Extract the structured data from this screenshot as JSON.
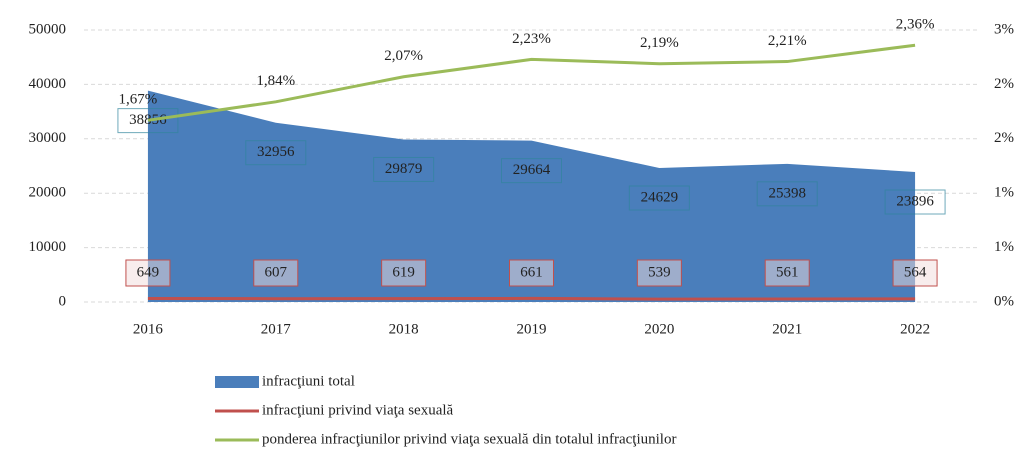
{
  "chart_data": {
    "type": "area",
    "categories": [
      "2016",
      "2017",
      "2018",
      "2019",
      "2020",
      "2021",
      "2022"
    ],
    "series": [
      {
        "name": "infracţiuni total",
        "color": "#4a7ebb",
        "type": "area",
        "values": [
          38856,
          32956,
          29879,
          29664,
          24629,
          25398,
          23896
        ]
      },
      {
        "name": "infracţiuni privind viaţa sexuală",
        "color": "#c0504d",
        "type": "line",
        "values": [
          649,
          607,
          619,
          661,
          539,
          561,
          564
        ]
      },
      {
        "name": "ponderea infracţiunilor privind viaţa sexuală din totalul infracţiunilor",
        "color": "#9bbb59",
        "type": "line",
        "axis": "y2",
        "values": [
          1.67,
          1.84,
          2.07,
          2.23,
          2.19,
          2.21,
          2.36
        ],
        "value_labels": [
          "1,67%",
          "1,84%",
          "2,07%",
          "2,23%",
          "2,19%",
          "2,21%",
          "2,36%"
        ]
      }
    ],
    "ylim": [
      0,
      50000
    ],
    "yticks": [
      0,
      10000,
      20000,
      30000,
      40000,
      50000
    ],
    "y2lim": [
      0,
      2.5
    ],
    "y2ticks": [
      {
        "value": 0,
        "label": "0%"
      },
      {
        "value": 0.5,
        "label": "1%"
      },
      {
        "value": 1,
        "label": "1%"
      },
      {
        "value": 1.5,
        "label": "2%"
      },
      {
        "value": 2,
        "label": "2%"
      },
      {
        "value": 2.5,
        "label": "3%"
      }
    ],
    "grid": true,
    "legend": "bottom"
  }
}
